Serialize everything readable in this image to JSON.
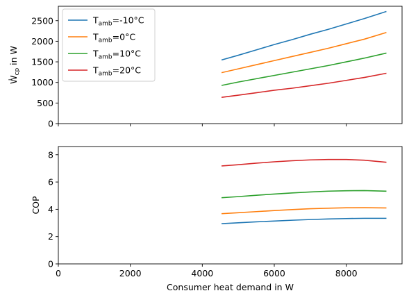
{
  "chart_data": [
    {
      "type": "line",
      "ylabel": "Ẇ",
      "ylabel_sub": "cp",
      "ylabel_suffix": " in W",
      "xlim": [
        0,
        9550
      ],
      "ylim": [
        0,
        2850
      ],
      "xticks": [
        0,
        2000,
        4000,
        6000,
        8000
      ],
      "yticks": [
        0,
        500,
        1000,
        1500,
        2000,
        2500
      ],
      "grid": false,
      "legend_position": "top-left",
      "x": [
        4550,
        5000,
        5500,
        6000,
        6500,
        7000,
        7500,
        8000,
        8500,
        9100
      ],
      "series": [
        {
          "name_prefix": "T",
          "name_sub": "amb",
          "name_suffix": "=-10°C",
          "color": "#1f77b4",
          "values": [
            1550,
            1660,
            1790,
            1920,
            2040,
            2170,
            2290,
            2420,
            2550,
            2720
          ]
        },
        {
          "name_prefix": "T",
          "name_sub": "amb",
          "name_suffix": "=0°C",
          "color": "#ff7f0e",
          "values": [
            1240,
            1330,
            1430,
            1530,
            1630,
            1730,
            1830,
            1940,
            2050,
            2210
          ]
        },
        {
          "name_prefix": "T",
          "name_sub": "amb",
          "name_suffix": "=10°C",
          "color": "#2ca02c",
          "values": [
            930,
            1010,
            1090,
            1170,
            1250,
            1330,
            1410,
            1500,
            1590,
            1710
          ]
        },
        {
          "name_prefix": "T",
          "name_sub": "amb",
          "name_suffix": "=20°C",
          "color": "#d62728",
          "values": [
            640,
            690,
            750,
            810,
            860,
            920,
            980,
            1050,
            1120,
            1220
          ]
        }
      ]
    },
    {
      "type": "line",
      "xlabel": "Consumer heat demand in W",
      "ylabel": "COP",
      "xlim": [
        0,
        9550
      ],
      "ylim": [
        0,
        8.6
      ],
      "xticks": [
        0,
        2000,
        4000,
        6000,
        8000
      ],
      "yticks": [
        0,
        2,
        4,
        6,
        8
      ],
      "grid": false,
      "x": [
        4550,
        5000,
        5500,
        6000,
        6500,
        7000,
        7500,
        8000,
        8500,
        9100
      ],
      "series": [
        {
          "color": "#1f77b4",
          "values": [
            2.95,
            3.01,
            3.08,
            3.14,
            3.2,
            3.25,
            3.29,
            3.32,
            3.34,
            3.34
          ]
        },
        {
          "color": "#ff7f0e",
          "values": [
            3.68,
            3.75,
            3.83,
            3.91,
            3.98,
            4.04,
            4.08,
            4.11,
            4.12,
            4.1
          ]
        },
        {
          "color": "#2ca02c",
          "values": [
            4.85,
            4.93,
            5.03,
            5.12,
            5.2,
            5.27,
            5.33,
            5.36,
            5.37,
            5.33
          ]
        },
        {
          "color": "#d62728",
          "values": [
            7.18,
            7.27,
            7.38,
            7.48,
            7.56,
            7.62,
            7.65,
            7.65,
            7.6,
            7.45
          ]
        }
      ]
    }
  ]
}
